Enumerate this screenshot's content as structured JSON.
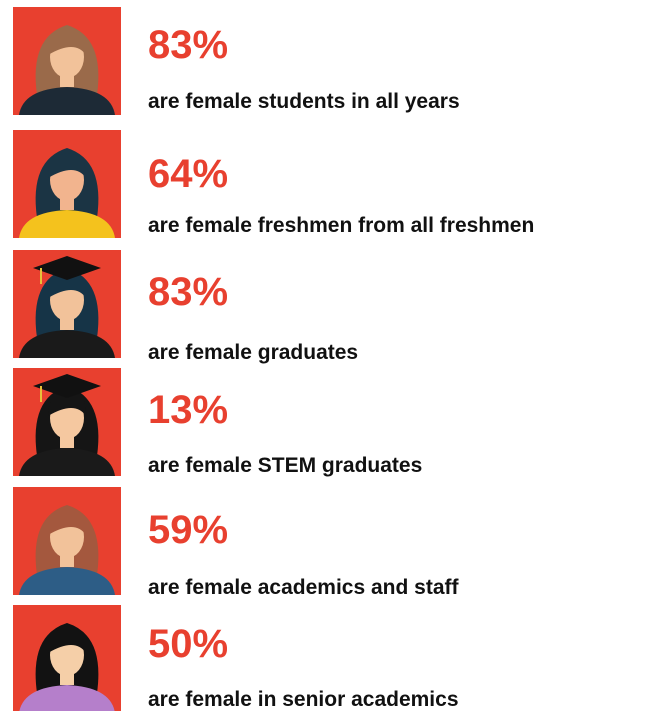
{
  "items": [
    {
      "percent": "83%",
      "label": "are female students in all years"
    },
    {
      "percent": "64%",
      "label": "are female freshmen from all freshmen"
    },
    {
      "percent": "83%",
      "label": "are female graduates"
    },
    {
      "percent": "13%",
      "label": "are female STEM graduates"
    },
    {
      "percent": "59%",
      "label": "are female academics and staff"
    },
    {
      "percent": "50%",
      "label": "are female in senior academics"
    }
  ]
}
